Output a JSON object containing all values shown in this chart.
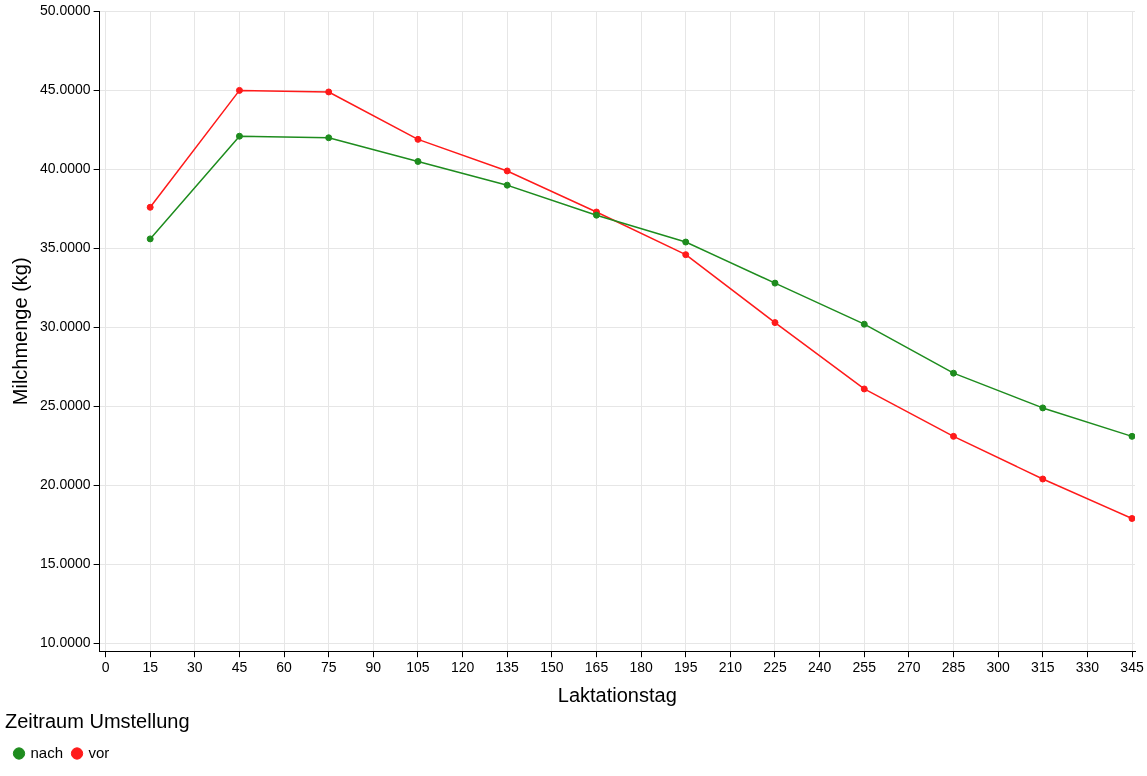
{
  "chart_data": {
    "type": "line",
    "xlabel": "Laktationstag",
    "ylabel": "Milchmenge (kg)",
    "legend_title": "Zeitraum Umstellung",
    "x": [
      15,
      45,
      75,
      105,
      135,
      165,
      195,
      225,
      255,
      285,
      315,
      345
    ],
    "series": [
      {
        "name": "nach",
        "color": "#1e8c1e",
        "values": [
          35.6,
          42.1,
          42.0,
          40.5,
          39.0,
          37.1,
          35.4,
          32.8,
          30.2,
          27.1,
          24.9,
          23.1
        ]
      },
      {
        "name": "vor",
        "color": "#ff1a1a",
        "values": [
          37.6,
          45.0,
          44.9,
          41.9,
          39.9,
          37.3,
          34.6,
          30.3,
          26.1,
          23.1,
          20.4,
          17.9
        ]
      }
    ],
    "xlim": [
      -2,
      346
    ],
    "xticks": [
      0,
      15,
      30,
      45,
      60,
      75,
      90,
      105,
      120,
      135,
      150,
      165,
      180,
      195,
      210,
      225,
      240,
      255,
      270,
      285,
      300,
      315,
      330,
      345
    ],
    "ylim": [
      9.5,
      50
    ],
    "yticks": [
      {
        "value": 10,
        "label": "10.0000"
      },
      {
        "value": 15,
        "label": "15.0000"
      },
      {
        "value": 20,
        "label": "20.0000"
      },
      {
        "value": 25,
        "label": "25.0000"
      },
      {
        "value": 30,
        "label": "30.0000"
      },
      {
        "value": 35,
        "label": "35.0000"
      },
      {
        "value": 40,
        "label": "40.0000"
      },
      {
        "value": 45,
        "label": "45.0000"
      },
      {
        "value": 50,
        "label": "50.0000"
      }
    ],
    "grid": true,
    "legend": "bottom",
    "marker": "circle",
    "line_style": "solid"
  }
}
